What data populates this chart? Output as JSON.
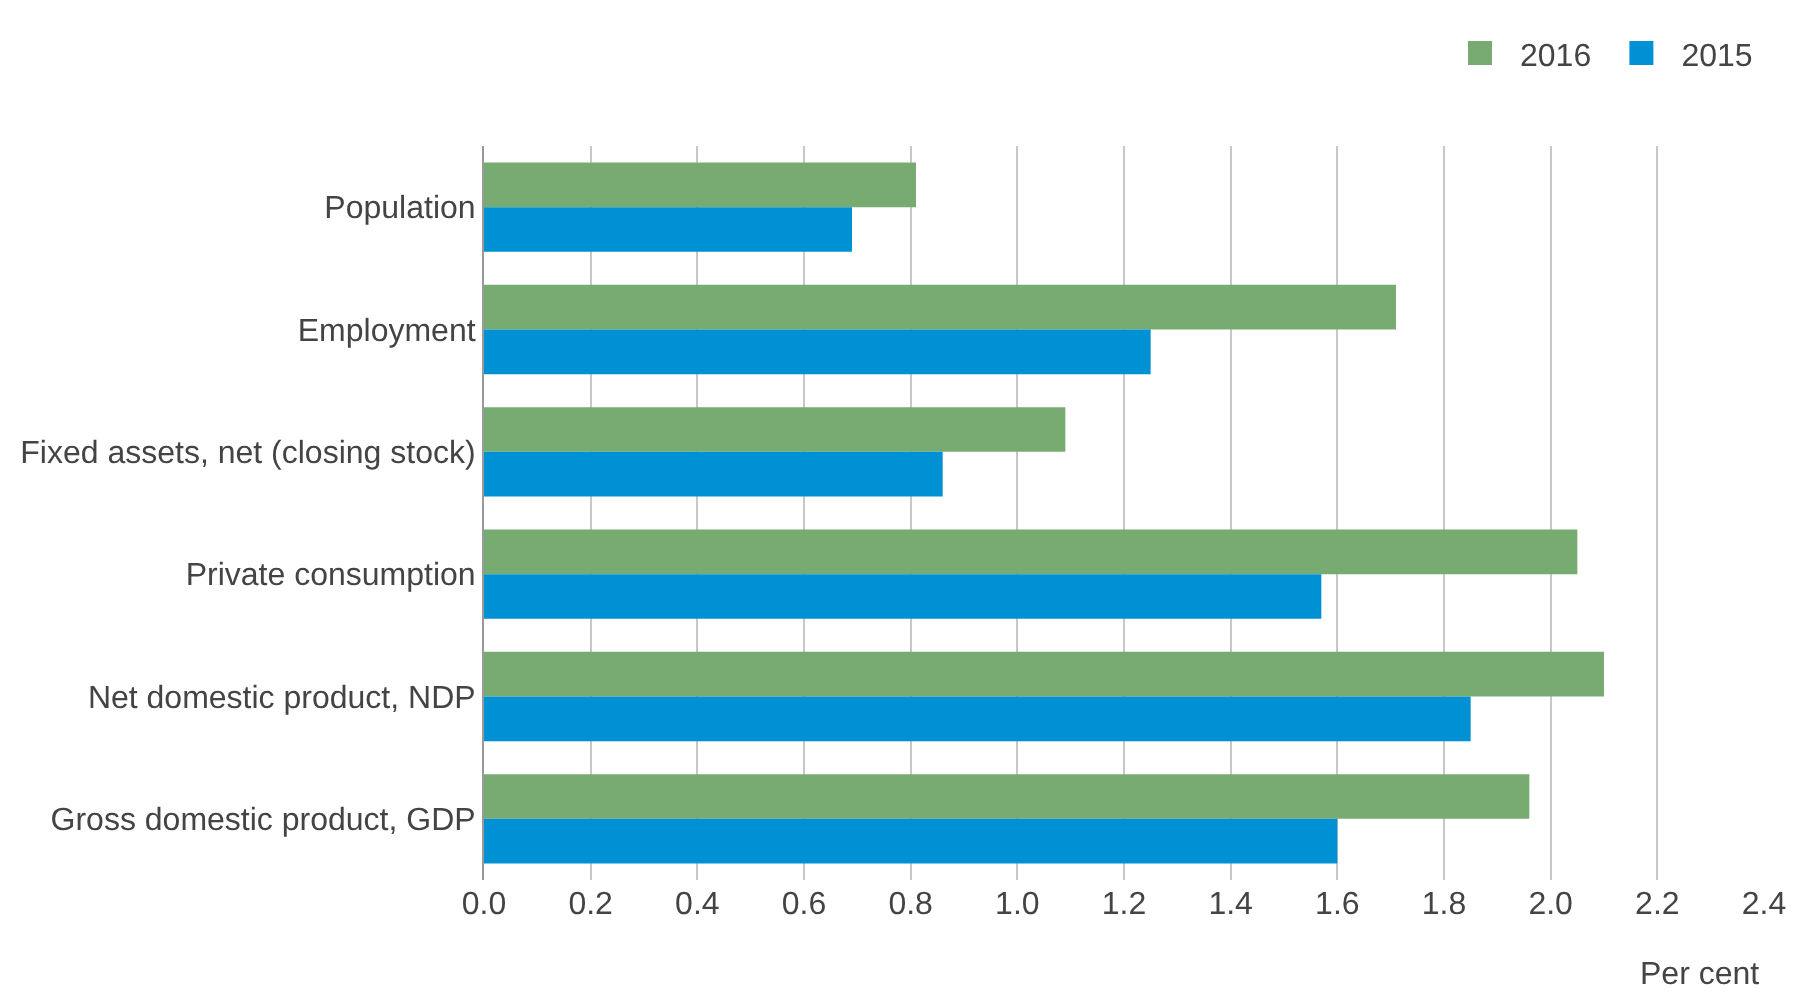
{
  "chart_data": {
    "type": "bar",
    "orientation": "horizontal",
    "categories": [
      "Population",
      "Employment",
      "Fixed assets, net (closing stock)",
      "Private consumption",
      "Net domestic product, NDP",
      "Gross domestic product, GDP"
    ],
    "series": [
      {
        "name": "2016",
        "color": "#77ab71",
        "values": [
          0.81,
          1.71,
          1.09,
          2.05,
          2.1,
          1.96
        ]
      },
      {
        "name": "2015",
        "color": "#0091d5",
        "values": [
          0.69,
          1.25,
          0.86,
          1.57,
          1.85,
          1.6
        ]
      }
    ],
    "xlabel": "Per cent",
    "xlim": [
      0,
      2.4
    ],
    "xticks": [
      {
        "value": 0,
        "label": "0.0"
      },
      0.2,
      0.4,
      0.6,
      0.8,
      {
        "value": 1,
        "label": "1.0"
      },
      1.2,
      1.4,
      1.6,
      1.8,
      {
        "value": 2,
        "label": "2.0"
      },
      2.2,
      2.4
    ],
    "grid": "x",
    "legend": "top right"
  }
}
